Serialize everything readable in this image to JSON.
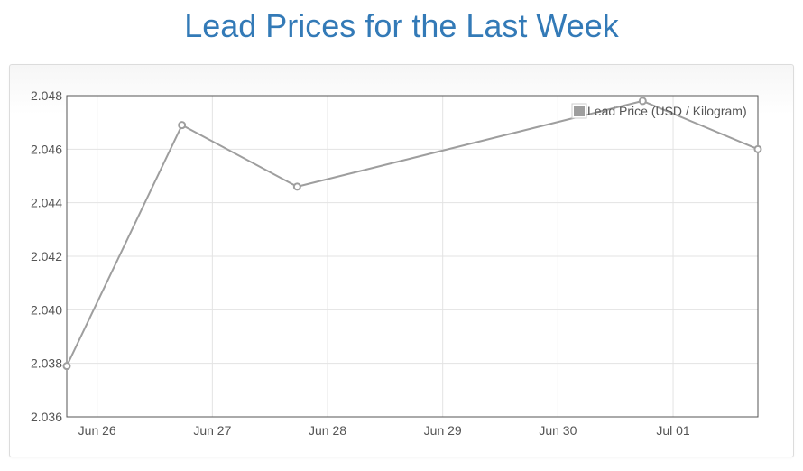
{
  "page": {
    "title": "Lead Prices for the Last Week"
  },
  "chart_data": {
    "type": "line",
    "title": "Lead Prices for the Last Week",
    "xlabel": "",
    "ylabel": "",
    "x": [
      "Jun 25 17:40",
      "Jun 26 17:40",
      "Jun 27 17:40",
      "Jun 30 17:40",
      "Jul 01 17:40"
    ],
    "xlim": [
      "Jun 25 17:40",
      "Jul 01 17:40"
    ],
    "x_ticks": [
      "Jun 26",
      "Jun 27",
      "Jun 28",
      "Jun 29",
      "Jun 30",
      "Jul 01"
    ],
    "ylim": [
      2.036,
      2.048
    ],
    "y_ticks": [
      "2.036",
      "2.038",
      "2.040",
      "2.042",
      "2.044",
      "2.046",
      "2.048"
    ],
    "series": [
      {
        "name": "Lead Price (USD / Kilogram)",
        "color": "#9e9e9e",
        "values": [
          2.0379,
          2.0469,
          2.0446,
          2.0478,
          2.046
        ]
      }
    ],
    "grid": true,
    "legend": "top-right"
  }
}
